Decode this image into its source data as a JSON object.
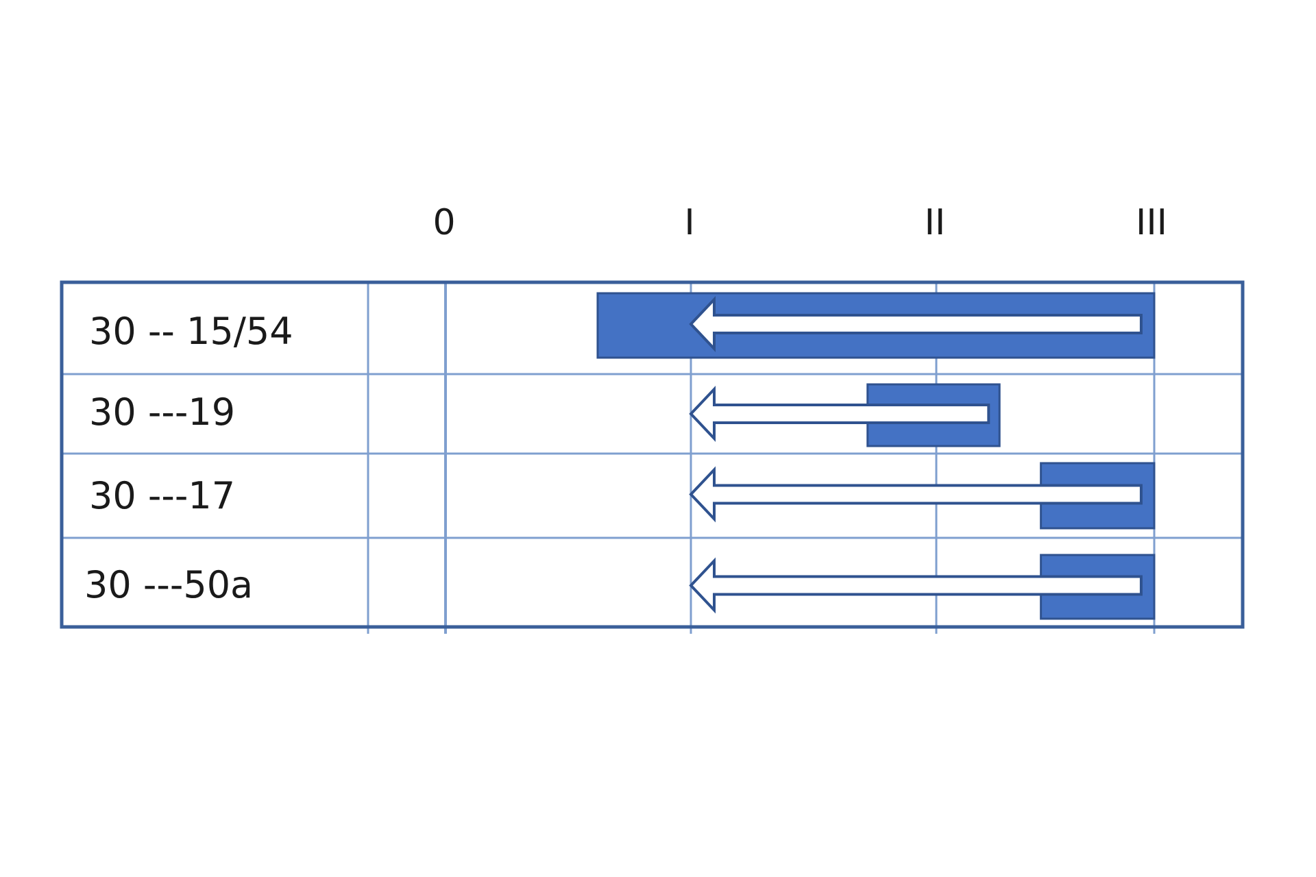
{
  "columns": [
    "0",
    "I",
    "II",
    "III"
  ],
  "rows": [
    {
      "label": "30 -- 15/54",
      "bar": {
        "from": 0.62,
        "to": 3.0
      },
      "arrow": {
        "from": 2.94,
        "to": 1.0
      }
    },
    {
      "label": "30 ---19",
      "bar": {
        "from": 1.72,
        "to": 2.29
      },
      "arrow": {
        "from": 2.24,
        "to": 1.0
      }
    },
    {
      "label": "30 ---17",
      "bar": {
        "from": 2.48,
        "to": 3.0
      },
      "arrow": {
        "from": 2.94,
        "to": 1.0
      }
    },
    {
      "label": "30 ---50a",
      "bar": {
        "from": 2.48,
        "to": 3.0
      },
      "arrow": {
        "from": 2.94,
        "to": 1.0
      }
    }
  ],
  "colors": {
    "bar": "#4472c4",
    "bar_edge": "#2f528f",
    "grid": "#7f9fcf",
    "frame": "#3a5f9a",
    "arrow_fill": "#ffffff",
    "arrow_stroke": "#2f528f"
  }
}
